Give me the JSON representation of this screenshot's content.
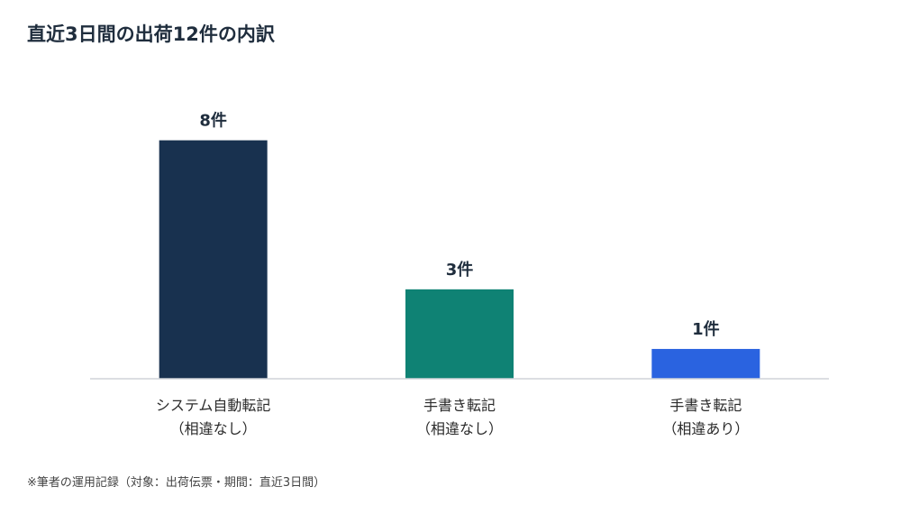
{
  "chart_data": {
    "type": "bar",
    "title": "直近3日間の出荷12件の内訳",
    "categories": [
      [
        "システム自動転記",
        "（相違なし）"
      ],
      [
        "手書き転記",
        "（相違なし）"
      ],
      [
        "手書き転記",
        "（相違あり）"
      ]
    ],
    "values": [
      8,
      3,
      1
    ],
    "value_labels": [
      "8件",
      "3件",
      "1件"
    ],
    "colors": [
      "#18314f",
      "#0f8274",
      "#2a63e0"
    ],
    "ylim": [
      0,
      9.5
    ],
    "grid": false,
    "legend": "none"
  },
  "footnote": "※筆者の運用記録（対象：出荷伝票・期間：直近3日間）"
}
